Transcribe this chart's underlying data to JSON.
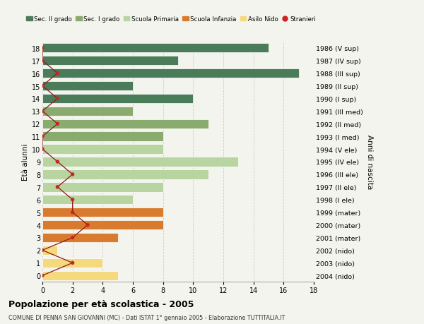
{
  "ages": [
    18,
    17,
    16,
    15,
    14,
    13,
    12,
    11,
    10,
    9,
    8,
    7,
    6,
    5,
    4,
    3,
    2,
    1,
    0
  ],
  "anni_nascita": [
    "1986 (V sup)",
    "1987 (IV sup)",
    "1988 (III sup)",
    "1989 (II sup)",
    "1990 (I sup)",
    "1991 (III med)",
    "1992 (II med)",
    "1993 (I med)",
    "1994 (V ele)",
    "1995 (IV ele)",
    "1996 (III ele)",
    "1997 (II ele)",
    "1998 (I ele)",
    "1999 (mater)",
    "2000 (mater)",
    "2001 (mater)",
    "2002 (nido)",
    "2003 (nido)",
    "2004 (nido)"
  ],
  "bar_values": [
    15,
    9,
    17,
    6,
    10,
    6,
    11,
    8,
    8,
    13,
    11,
    8,
    6,
    8,
    8,
    5,
    1,
    4,
    5
  ],
  "bar_colors": [
    "#4a7c59",
    "#4a7c59",
    "#4a7c59",
    "#4a7c59",
    "#4a7c59",
    "#8aab6e",
    "#8aab6e",
    "#8aab6e",
    "#b8d4a0",
    "#b8d4a0",
    "#b8d4a0",
    "#b8d4a0",
    "#b8d4a0",
    "#d97b2e",
    "#d97b2e",
    "#d97b2e",
    "#f5d97e",
    "#f5d97e",
    "#f5d97e"
  ],
  "stranieri_values": [
    0,
    0,
    1,
    0,
    1,
    0,
    1,
    0,
    0,
    1,
    2,
    1,
    2,
    2,
    3,
    2,
    0,
    2,
    0
  ],
  "legend_labels": [
    "Sec. II grado",
    "Sec. I grado",
    "Scuola Primaria",
    "Scuola Infanzia",
    "Asilo Nido",
    "Stranieri"
  ],
  "legend_colors": [
    "#4a7c59",
    "#8aab6e",
    "#b8d4a0",
    "#d97b2e",
    "#f5d97e",
    "#aa2222"
  ],
  "title": "Popolazione per età scolastica - 2005",
  "subtitle": "COMUNE DI PENNA SAN GIOVANNI (MC) - Dati ISTAT 1° gennaio 2005 - Elaborazione TUTTITALIA.IT",
  "ylabel": "Età alunni",
  "ylabel2": "Anni di nascita",
  "xlim": [
    0,
    18
  ],
  "background_color": "#f4f4ee",
  "grid_color": "#cccccc",
  "bar_height": 0.75
}
